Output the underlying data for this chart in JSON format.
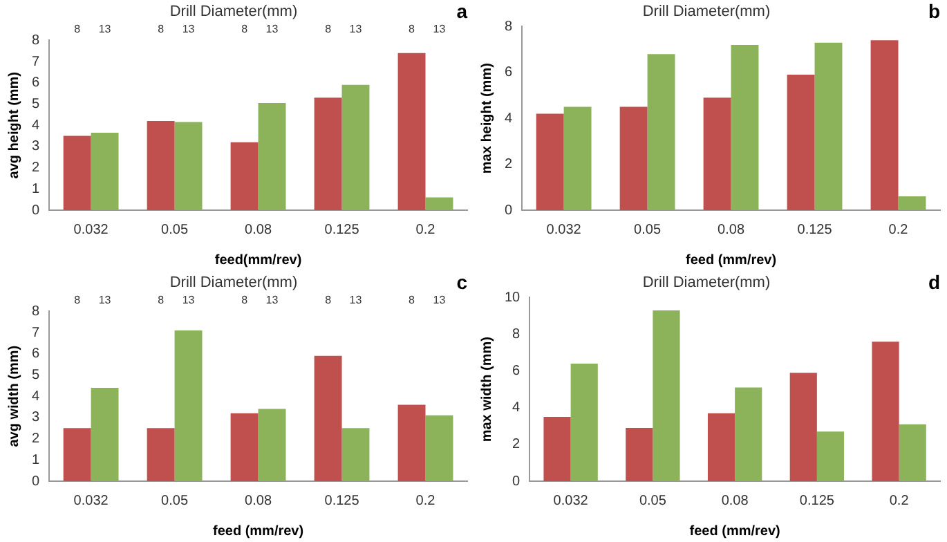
{
  "chart_data": [
    {
      "type": "bar",
      "title": "Drill Diameter(mm)",
      "xlabel": "feed(mm/rev)",
      "ylabel": "avg height (mm)",
      "annotations": [
        "a"
      ],
      "categories": [
        "0.032",
        "0.05",
        "0.08",
        "0.125",
        "0.2"
      ],
      "ylim": [
        0,
        8
      ],
      "yticks": [
        0,
        1,
        2,
        3,
        4,
        5,
        6,
        7,
        8
      ],
      "grid": false,
      "legend": false,
      "series": [
        {
          "name": "8",
          "color": "#c0504d",
          "values": [
            3.5,
            4.2,
            3.2,
            5.3,
            7.4
          ]
        },
        {
          "name": "13",
          "color": "#8db35a",
          "values": [
            3.65,
            4.15,
            5.05,
            5.9,
            0.6
          ]
        }
      ]
    },
    {
      "type": "bar",
      "title": "Drill Diameter(mm)",
      "xlabel": "feed (mm/rev)",
      "ylabel": "max height (mm)",
      "annotations": [
        "b"
      ],
      "categories": [
        "0.032",
        "0.05",
        "0.08",
        "0.125",
        "0.2"
      ],
      "ylim": [
        0,
        8
      ],
      "yticks": [
        0,
        2,
        4,
        6,
        8
      ],
      "grid": false,
      "legend": false,
      "series": [
        {
          "color": "#c0504d",
          "values": [
            4.2,
            4.5,
            4.9,
            5.9,
            7.4
          ]
        },
        {
          "color": "#8db35a",
          "values": [
            4.5,
            6.8,
            7.2,
            7.3,
            0.6
          ]
        }
      ]
    },
    {
      "type": "bar",
      "title": "Drill Diameter(mm)",
      "xlabel": "feed (mm/rev)",
      "ylabel": "avg width (mm)",
      "annotations": [
        "c"
      ],
      "categories": [
        "0.032",
        "0.05",
        "0.08",
        "0.125",
        "0.2"
      ],
      "ylim": [
        0,
        8
      ],
      "yticks": [
        0,
        1,
        2,
        3,
        4,
        5,
        6,
        7,
        8
      ],
      "grid": false,
      "legend": false,
      "series": [
        {
          "name": "8",
          "color": "#c0504d",
          "values": [
            2.5,
            2.5,
            3.2,
            5.9,
            3.6
          ]
        },
        {
          "name": "13",
          "color": "#8db35a",
          "values": [
            4.4,
            7.1,
            3.4,
            2.5,
            3.1
          ]
        }
      ]
    },
    {
      "type": "bar",
      "title": "Drill Diameter(mm)",
      "xlabel": "feed (mm/rev)",
      "ylabel": "max width (mm)",
      "annotations": [
        "d"
      ],
      "categories": [
        "0.032",
        "0.05",
        "0.08",
        "0.125",
        "0.2"
      ],
      "ylim": [
        0,
        10
      ],
      "yticks": [
        0,
        2,
        4,
        6,
        8,
        10
      ],
      "grid": false,
      "legend": false,
      "series": [
        {
          "color": "#c0504d",
          "values": [
            3.5,
            2.9,
            3.7,
            5.9,
            7.6
          ]
        },
        {
          "color": "#8db35a",
          "values": [
            6.4,
            9.3,
            5.1,
            2.7,
            3.1
          ]
        }
      ]
    }
  ]
}
